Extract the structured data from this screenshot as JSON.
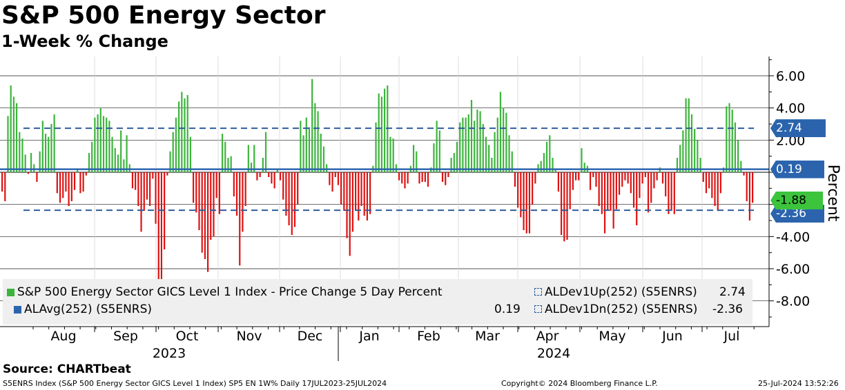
{
  "chart_data": {
    "type": "bar",
    "title": "S&P 500 Energy Sector",
    "subtitle": "1-Week % Change",
    "ylabel": "Percent",
    "ylim": [
      -9.6,
      7.2
    ],
    "yticks": [
      "6.00",
      "4.00",
      "2.00",
      "-2.00",
      "-4.00",
      "-6.00",
      "-8.00"
    ],
    "ytick_values": [
      6,
      4,
      2,
      -2,
      -4,
      -6,
      -8
    ],
    "months": [
      "Aug",
      "Sep",
      "Oct",
      "Nov",
      "Dec",
      "Jan",
      "Feb",
      "Mar",
      "Apr",
      "May",
      "Jun",
      "Jul"
    ],
    "years": [
      "2023",
      "2024"
    ],
    "dates_range": "17JUL2023-25JUL2024",
    "series": [
      {
        "name": "S&P 500 Energy Sector GICS Level 1 Index - Price Change 5 Day Percent",
        "color_up": "#3cb43c",
        "color_down": "#dd1111",
        "values": [
          -1.2,
          -1.8,
          3.5,
          5.4,
          4.7,
          4.3,
          2.5,
          2.1,
          1.1,
          -0.1,
          1.2,
          0.5,
          -0.6,
          1.3,
          3.2,
          2.4,
          2.2,
          3.0,
          3.6,
          -1.3,
          -1.9,
          -1.6,
          -1.2,
          -2.1,
          -1.8,
          -1.1,
          0.2,
          -1.3,
          -1.2,
          -0.2,
          1.2,
          1.9,
          3.4,
          3.6,
          4.0,
          3.5,
          3.4,
          3.2,
          2.2,
          1.5,
          1.1,
          2.6,
          0.8,
          2.3,
          0.5,
          -1.0,
          -1.1,
          -2.1,
          -3.7,
          -2.4,
          -1.7,
          -2.1,
          -0.4,
          -3.2,
          -7.0,
          -6.8,
          -4.8,
          -0.2,
          1.3,
          2.5,
          3.4,
          4.4,
          5.0,
          4.6,
          4.8,
          2.2,
          -1.9,
          -2.5,
          -3.6,
          -5.0,
          -5.4,
          -6.2,
          -4.2,
          -4.0,
          -1.6,
          -2.6,
          2.4,
          1.9,
          0.9,
          1.0,
          -1.5,
          -2.7,
          -5.8,
          -3.7,
          -2.1,
          1.7,
          0.6,
          1.7,
          -0.5,
          -0.3,
          0.9,
          2.5,
          -0.3,
          -0.7,
          -1.0,
          0.2,
          -0.5,
          -1.7,
          -2.7,
          -3.3,
          -3.9,
          -3.4,
          -2.0,
          3.2,
          2.3,
          3.4,
          2.8,
          5.8,
          4.3,
          3.8,
          2.4,
          1.6,
          0.5,
          -0.8,
          -1.2,
          -0.3,
          -0.8,
          -2.0,
          -2.4,
          -4.1,
          -5.2,
          -3.7,
          -2.4,
          -3.0,
          -2.1,
          -2.7,
          -3.0,
          -2.6,
          0.4,
          3.1,
          4.9,
          4.7,
          5.2,
          5.4,
          2.2,
          2.1,
          0.5,
          -0.5,
          -0.7,
          -1.0,
          -0.7,
          0.4,
          1.7,
          1.3,
          -0.7,
          -0.6,
          -0.6,
          -0.9,
          0.3,
          1.8,
          3.2,
          2.6,
          -0.6,
          -0.8,
          -0.3,
          0.9,
          1.2,
          1.9,
          3.1,
          3.4,
          3.4,
          3.6,
          4.5,
          3.2,
          3.9,
          3.8,
          3.0,
          2.2,
          1.7,
          0.9,
          2.5,
          3.4,
          5.0,
          4.0,
          3.7,
          2.3,
          1.3,
          -0.9,
          -2.2,
          -2.8,
          -3.6,
          -3.8,
          -3.8,
          -2.0,
          -0.7,
          0.5,
          0.7,
          1.2,
          1.9,
          2.3,
          0.9,
          0.2,
          -1.2,
          -3.9,
          -4.3,
          -4.2,
          -2.3,
          -1.1,
          -0.5,
          -0.5,
          1.5,
          0.6,
          0.4,
          -1.1,
          -0.3,
          -0.9,
          -2.1,
          -2.6,
          -3.8,
          -2.4,
          -2.4,
          -3.5,
          -2.3,
          -1.4,
          -0.9,
          -0.5,
          -0.7,
          -1.3,
          -2.2,
          -3.3,
          -1.6,
          -0.7,
          -0.3,
          -2.5,
          -1.9,
          -1.0,
          -0.5,
          0.3,
          -0.7,
          -1.5,
          -2.6,
          -2.4,
          -2.6,
          0.9,
          1.7,
          2.6,
          4.6,
          4.6,
          3.6,
          2.7,
          2.0,
          0.9,
          -0.6,
          -1.3,
          -1.0,
          -1.6,
          -2.1,
          -2.4,
          -1.3,
          0.3,
          4.1,
          4.3,
          3.9,
          3.1,
          2.0,
          0.7,
          -0.2,
          -1.8,
          -3.0,
          -1.9
        ]
      },
      {
        "name": "ALAvg(252) (S5ENRS)",
        "value": 0.19,
        "color": "#2b64ad"
      },
      {
        "name": "ALDev1Up(252) (S5ENRS)",
        "value": 2.74,
        "color": "#2b5b9c"
      },
      {
        "name": "ALDev1Dn(252) (S5ENRS)",
        "value": -2.36,
        "color": "#2b5b9c"
      }
    ],
    "tags": {
      "up": "2.74",
      "avg": "0.19",
      "last": "-1.88",
      "down": "-2.36"
    }
  },
  "legend": {
    "main_label": "S&P 500 Energy Sector GICS Level 1 Index - Price Change 5 Day Percent",
    "avg_label": "ALAvg(252) (S5ENRS)",
    "avg_value": "0.19",
    "up_label": "ALDev1Up(252) (S5ENRS)",
    "up_value": "2.74",
    "dn_label": "ALDev1Dn(252) (S5ENRS)",
    "dn_value": "-2.36"
  },
  "footer": {
    "source": "Source: CHARTbeat",
    "ticker": "S5ENRS Index (S&P 500 Energy Sector GICS Level 1 Index) SP5 EN 1W%  Daily 17JUL2023-25JUL2024",
    "copyright": "Copyright© 2024 Bloomberg Finance L.P.",
    "timestamp": "25-Jul-2024 13:52:26"
  }
}
